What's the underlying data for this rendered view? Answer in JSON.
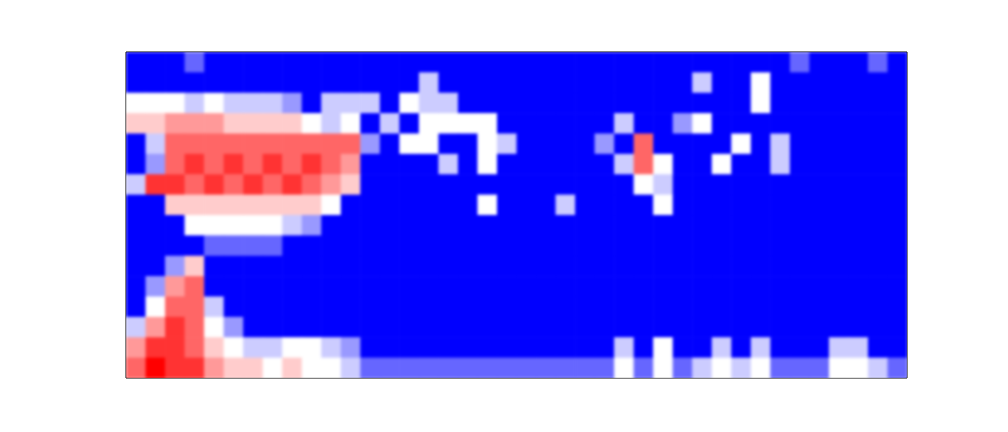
{
  "chart_data": {
    "type": "heatmap",
    "tick_labels": false,
    "color_range": [
      0,
      1
    ],
    "cells": [
      [
        0,
        0,
        0,
        0.2,
        0,
        0,
        0,
        0,
        0,
        0,
        0,
        0,
        0,
        0,
        0,
        0,
        0,
        0,
        0,
        0,
        0,
        0,
        0,
        0,
        0,
        0,
        0,
        0,
        0,
        0,
        0,
        0,
        0,
        0,
        0.2,
        0,
        0,
        0,
        0.2,
        0
      ],
      [
        0,
        0,
        0,
        0,
        0,
        0,
        0,
        0,
        0,
        0,
        0,
        0,
        0,
        0,
        0,
        0.4,
        0,
        0,
        0,
        0,
        0,
        0,
        0,
        0,
        0,
        0,
        0,
        0,
        0,
        0.4,
        0,
        0,
        0.5,
        0,
        0,
        0,
        0,
        0,
        0,
        0
      ],
      [
        0.5,
        0.5,
        0.5,
        0.4,
        0.5,
        0.4,
        0.4,
        0.4,
        0.3,
        0,
        0.4,
        0.4,
        0.4,
        0,
        0.5,
        0.4,
        0.4,
        0,
        0,
        0,
        0,
        0,
        0,
        0,
        0,
        0,
        0,
        0,
        0,
        0,
        0,
        0,
        0.5,
        0,
        0,
        0,
        0,
        0,
        0,
        0
      ],
      [
        0.6,
        0.6,
        0.7,
        0.7,
        0.7,
        0.6,
        0.6,
        0.6,
        0.6,
        0.5,
        0.4,
        0.5,
        0,
        0.4,
        0,
        0.5,
        0.5,
        0.5,
        0.5,
        0,
        0,
        0,
        0,
        0,
        0,
        0.4,
        0,
        0,
        0.3,
        0.5,
        0,
        0,
        0,
        0,
        0,
        0,
        0,
        0,
        0,
        0
      ],
      [
        0,
        0.4,
        0.8,
        0.8,
        0.8,
        0.8,
        0.8,
        0.8,
        0.8,
        0.8,
        0.8,
        0.8,
        0.3,
        0,
        0.5,
        0.5,
        0,
        0,
        0.5,
        0.4,
        0,
        0,
        0,
        0,
        0.3,
        0,
        0.8,
        0,
        0,
        0,
        0,
        0.5,
        0,
        0.4,
        0,
        0,
        0,
        0,
        0,
        0
      ],
      [
        0,
        0.3,
        0.8,
        0.9,
        0.8,
        0.9,
        0.8,
        0.9,
        0.8,
        0.9,
        0.8,
        0.7,
        0,
        0,
        0,
        0,
        0.4,
        0,
        0.5,
        0,
        0,
        0,
        0,
        0,
        0,
        0.4,
        0.8,
        0.5,
        0,
        0,
        0.5,
        0,
        0,
        0.4,
        0,
        0,
        0,
        0,
        0,
        0
      ],
      [
        0.4,
        0.9,
        0.9,
        0.8,
        0.9,
        0.8,
        0.9,
        0.8,
        0.9,
        0.8,
        0.7,
        0.6,
        0,
        0,
        0,
        0,
        0,
        0,
        0,
        0,
        0,
        0,
        0,
        0,
        0,
        0,
        0.5,
        0.4,
        0,
        0,
        0,
        0,
        0,
        0,
        0,
        0,
        0,
        0,
        0,
        0
      ],
      [
        0,
        0,
        0.6,
        0.6,
        0.6,
        0.6,
        0.6,
        0.6,
        0.6,
        0.6,
        0.5,
        0,
        0,
        0,
        0,
        0,
        0,
        0,
        0.5,
        0,
        0,
        0,
        0.4,
        0,
        0,
        0,
        0,
        0.5,
        0,
        0,
        0,
        0,
        0,
        0,
        0,
        0,
        0,
        0,
        0,
        0
      ],
      [
        0,
        0,
        0,
        0.5,
        0.5,
        0.5,
        0.5,
        0.5,
        0.4,
        0.3,
        0,
        0,
        0,
        0,
        0,
        0,
        0,
        0,
        0,
        0,
        0,
        0,
        0,
        0,
        0,
        0,
        0,
        0,
        0,
        0,
        0,
        0,
        0,
        0,
        0,
        0,
        0,
        0,
        0,
        0
      ],
      [
        0,
        0,
        0,
        0,
        0.2,
        0.2,
        0.2,
        0.2,
        0,
        0,
        0,
        0,
        0,
        0,
        0,
        0,
        0,
        0,
        0,
        0,
        0,
        0,
        0,
        0,
        0,
        0,
        0,
        0,
        0,
        0,
        0,
        0,
        0,
        0,
        0,
        0,
        0,
        0,
        0,
        0
      ],
      [
        0,
        0,
        0.3,
        0.6,
        0,
        0,
        0,
        0,
        0,
        0,
        0,
        0,
        0,
        0,
        0,
        0,
        0,
        0,
        0,
        0,
        0,
        0,
        0,
        0,
        0,
        0,
        0,
        0,
        0,
        0,
        0,
        0,
        0,
        0,
        0,
        0,
        0,
        0,
        0,
        0
      ],
      [
        0,
        0.3,
        0.7,
        0.8,
        0,
        0,
        0,
        0,
        0,
        0,
        0,
        0,
        0,
        0,
        0,
        0,
        0,
        0,
        0,
        0,
        0,
        0,
        0,
        0,
        0,
        0,
        0,
        0,
        0,
        0,
        0,
        0,
        0,
        0,
        0,
        0,
        0,
        0,
        0,
        0
      ],
      [
        0,
        0.5,
        0.8,
        0.8,
        0.4,
        0,
        0,
        0,
        0,
        0,
        0,
        0,
        0,
        0,
        0,
        0,
        0,
        0,
        0,
        0,
        0,
        0,
        0,
        0,
        0,
        0,
        0,
        0,
        0,
        0,
        0,
        0,
        0,
        0,
        0,
        0,
        0,
        0,
        0,
        0
      ],
      [
        0.4,
        0.7,
        0.9,
        0.8,
        0.5,
        0.3,
        0,
        0,
        0,
        0,
        0,
        0,
        0,
        0,
        0,
        0,
        0,
        0,
        0,
        0,
        0,
        0,
        0,
        0,
        0,
        0,
        0,
        0,
        0,
        0,
        0,
        0,
        0,
        0,
        0,
        0,
        0,
        0,
        0,
        0
      ],
      [
        0.7,
        0.9,
        0.9,
        0.8,
        0.6,
        0.5,
        0.4,
        0.4,
        0.5,
        0.5,
        0.4,
        0.3,
        0,
        0,
        0,
        0,
        0,
        0,
        0,
        0,
        0,
        0,
        0,
        0,
        0,
        0.4,
        0,
        0.5,
        0,
        0,
        0.4,
        0,
        0.4,
        0,
        0,
        0,
        0.4,
        0.4,
        0,
        0
      ],
      [
        0.8,
        1,
        0.9,
        0.9,
        0.7,
        0.6,
        0.6,
        0.5,
        0.6,
        0.5,
        0.5,
        0.4,
        0.2,
        0.2,
        0.2,
        0.2,
        0.2,
        0.2,
        0.2,
        0.2,
        0.2,
        0.2,
        0.2,
        0.2,
        0.2,
        0.5,
        0.2,
        0.5,
        0.2,
        0.4,
        0.5,
        0.4,
        0.5,
        0.2,
        0.2,
        0.2,
        0.5,
        0.5,
        0.4,
        0.2
      ]
    ]
  }
}
